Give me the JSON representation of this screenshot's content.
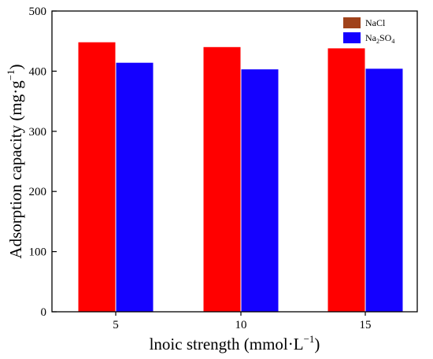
{
  "chart_data": {
    "type": "bar",
    "categories": [
      "5",
      "10",
      "15"
    ],
    "series": [
      {
        "name": "NaCl",
        "values": [
          448,
          440,
          438
        ],
        "color": "#ff0000",
        "legend_color": "#a0421a"
      },
      {
        "name": "Na2SO4",
        "values": [
          414,
          403,
          404
        ],
        "color": "#1400ff",
        "legend_color": "#1400ff"
      }
    ],
    "legend": {
      "nacl_label": "NaCl",
      "na2so4_base": "Na",
      "na2so4_sub1": "2",
      "na2so4_mid": "SO",
      "na2so4_sub2": "4",
      "position": "top-right"
    },
    "title": "",
    "xlabel_main": "lnoic strength (mmol·L",
    "xlabel_sup": "−1",
    "xlabel_close": ")",
    "ylabel_main": "Adsorption capacity (mg·g",
    "ylabel_sup": "−1",
    "ylabel_close": ")",
    "ylim": [
      0,
      500
    ],
    "yticks": [
      0,
      100,
      200,
      300,
      400,
      500
    ],
    "grid": false
  }
}
